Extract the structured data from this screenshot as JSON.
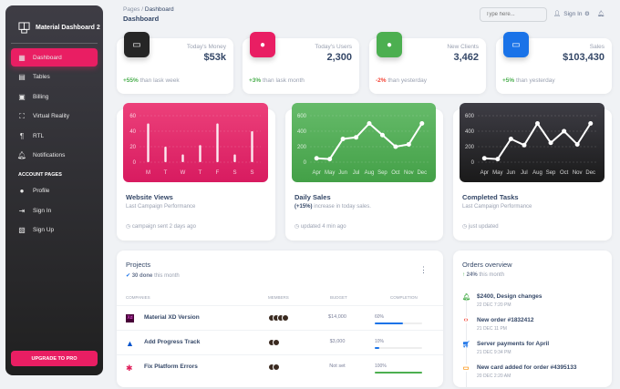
{
  "sidebar": {
    "brand": "Material Dashboard 2",
    "items": [
      {
        "label": "Dashboard",
        "icon": "dashboard-icon"
      },
      {
        "label": "Tables",
        "icon": "table-icon"
      },
      {
        "label": "Billing",
        "icon": "receipt-icon"
      },
      {
        "label": "Virtual Reality",
        "icon": "vr-icon"
      },
      {
        "label": "RTL",
        "icon": "rtl-icon"
      },
      {
        "label": "Notifications",
        "icon": "bell-icon"
      }
    ],
    "section": "ACCOUNT PAGES",
    "account": [
      {
        "label": "Profile",
        "icon": "person-icon"
      },
      {
        "label": "Sign In",
        "icon": "login-icon"
      },
      {
        "label": "Sign Up",
        "icon": "assignment-icon"
      }
    ],
    "upgrade": "UPGRADE TO PRO",
    "accent": "#e91e63"
  },
  "header": {
    "crumb_root": "Pages",
    "crumb_sep": "/",
    "crumb_current": "Dashboard",
    "title": "Dashboard",
    "search_placeholder": "Type here...",
    "sign_in": "Sign In"
  },
  "stats": [
    {
      "label": "Today's Money",
      "value": "$53k",
      "change": "+55%",
      "note": "than lask week",
      "color": "#262626",
      "trend": "up"
    },
    {
      "label": "Today's Users",
      "value": "2,300",
      "change": "+3%",
      "note": "than lask month",
      "color": "#e91e63",
      "trend": "up"
    },
    {
      "label": "New Clients",
      "value": "3,462",
      "change": "-2%",
      "note": "than yesterday",
      "color": "#4caf50",
      "trend": "down"
    },
    {
      "label": "Sales",
      "value": "$103,430",
      "change": "+5%",
      "note": "than yesterday",
      "color": "#1a73e8",
      "trend": "up"
    }
  ],
  "charts": {
    "views": {
      "title": "Website Views",
      "subtitle": "Last Campaign Performance",
      "footer": "campaign sent 2 days ago"
    },
    "sales": {
      "title": "Daily Sales",
      "subtitle_bold": "(+15%)",
      "subtitle": "increase in today sales.",
      "footer": "updated 4 min ago"
    },
    "tasks": {
      "title": "Completed Tasks",
      "subtitle": "Last Campaign Performance",
      "footer": "just updated"
    }
  },
  "chart_data": [
    {
      "type": "bar",
      "categories": [
        "M",
        "T",
        "W",
        "T",
        "F",
        "S",
        "S"
      ],
      "values": [
        50,
        20,
        10,
        22,
        50,
        10,
        40
      ],
      "ylim": [
        0,
        60
      ],
      "yticks": [
        0,
        20,
        40,
        60
      ],
      "grid": true,
      "color": "#e91e63"
    },
    {
      "type": "line",
      "categories": [
        "Apr",
        "May",
        "Jun",
        "Jul",
        "Aug",
        "Sep",
        "Oct",
        "Nov",
        "Dec"
      ],
      "values": [
        50,
        40,
        300,
        320,
        500,
        350,
        200,
        230,
        500
      ],
      "ylim": [
        0,
        600
      ],
      "yticks": [
        0,
        200,
        400,
        600
      ],
      "grid": true,
      "color": "#4caf50"
    },
    {
      "type": "line",
      "categories": [
        "Apr",
        "May",
        "Jun",
        "Jul",
        "Aug",
        "Sep",
        "Oct",
        "Nov",
        "Dec"
      ],
      "values": [
        50,
        40,
        300,
        220,
        500,
        250,
        400,
        230,
        500
      ],
      "ylim": [
        0,
        600
      ],
      "yticks": [
        0,
        200,
        400,
        600
      ],
      "grid": true,
      "color": "#262626"
    }
  ],
  "projects": {
    "title": "Projects",
    "done": "30 done",
    "done_note": "this month",
    "columns": [
      "COMPANIES",
      "MEMBERS",
      "BUDGET",
      "COMPLETION"
    ],
    "rows": [
      {
        "name": "Material XD Version",
        "logo": "xd",
        "members": 4,
        "budget": "$14,000",
        "completion": "60%",
        "pct": 60,
        "color": "#1a73e8"
      },
      {
        "name": "Add Progress Track",
        "logo": "atlassian",
        "members": 2,
        "budget": "$3,000",
        "completion": "10%",
        "pct": 10,
        "color": "#1a73e8"
      },
      {
        "name": "Fix Platform Errors",
        "logo": "slack",
        "members": 2,
        "budget": "Not set",
        "completion": "100%",
        "pct": 100,
        "color": "#4caf50"
      }
    ]
  },
  "orders": {
    "title": "Orders overview",
    "change": "24%",
    "note": "this month",
    "items": [
      {
        "title": "$2400, Design changes",
        "date": "22 DEC 7:20 PM",
        "icon": "bell-icon",
        "color": "#4caf50"
      },
      {
        "title": "New order #1832412",
        "date": "21 DEC 11 PM",
        "icon": "code-icon",
        "color": "#f44335"
      },
      {
        "title": "Server payments for April",
        "date": "21 DEC 9:34 PM",
        "icon": "cart-icon",
        "color": "#1a73e8"
      },
      {
        "title": "New card added for order #4395133",
        "date": "20 DEC 2:20 AM",
        "icon": "credit-card-icon",
        "color": "#fb8c00"
      }
    ]
  }
}
